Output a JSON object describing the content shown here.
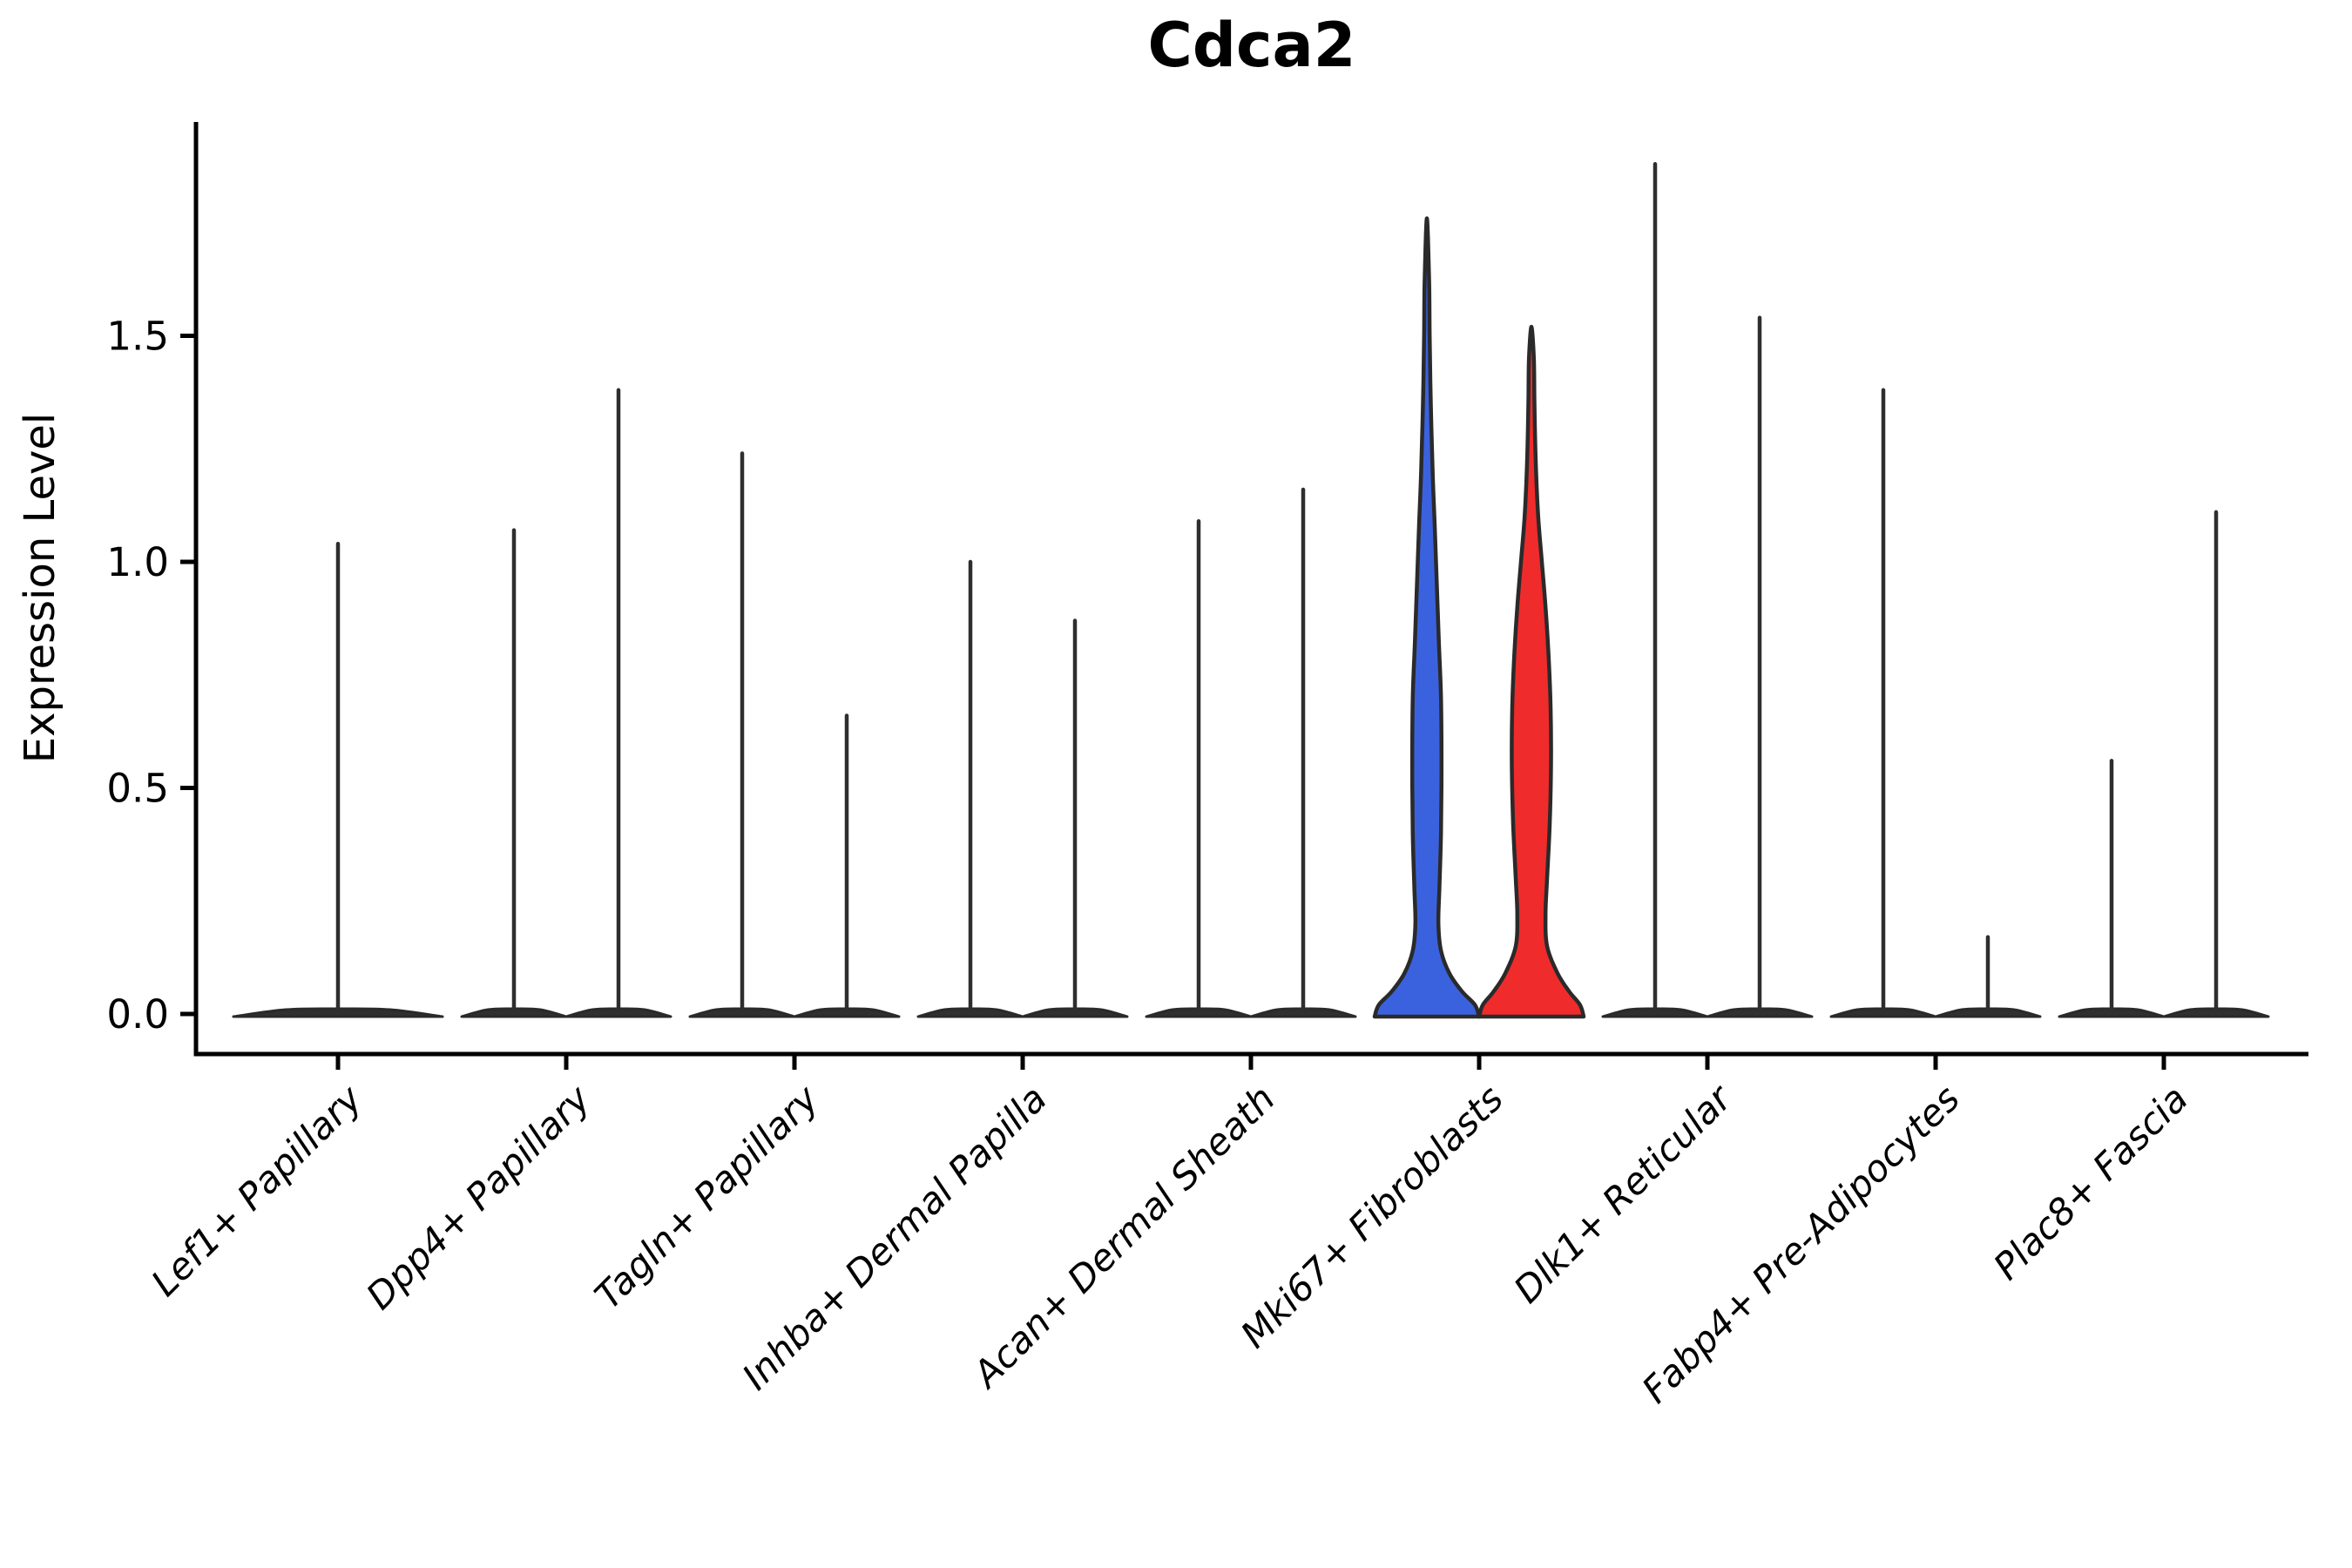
{
  "figure": {
    "background": "#ffffff"
  },
  "chart_data": {
    "type": "violin",
    "title": "Cdca2",
    "ylabel": "Expression Level",
    "xlabel": "",
    "grid": false,
    "legend_position": "none",
    "ylim": [
      -0.08,
      1.97
    ],
    "yticks": [
      0.0,
      0.5,
      1.0,
      1.5
    ],
    "ytick_labels": [
      "0.0",
      "0.5",
      "1.0",
      "1.5"
    ],
    "categories": [
      "Lef1+ Papillary",
      "Dpp4+ Papillary",
      "Tagln+ Papillary",
      "Inhba+ Dermal Papilla",
      "Acan+ Dermal Sheath",
      "Mki67+ Fibroblasts",
      "Dlk1+ Reticular",
      "Fabp4+ Pre-Adipocytes",
      "Plac8+ Fascia"
    ],
    "colors": {
      "split_left_fill": "#3B62DE",
      "split_right_fill": "#F02B2B",
      "edge": "#2A2A2A",
      "spike": "#2E2E2E",
      "axis": "#000000"
    },
    "violins": [
      {
        "category_index": 0,
        "category": "Lef1+ Papillary",
        "side": "center",
        "span": "full",
        "max_expression": 1.04,
        "filled": false,
        "fill": null
      },
      {
        "category_index": 1,
        "category": "Dpp4+ Papillary",
        "side": "left",
        "span": "half",
        "max_expression": 1.07,
        "filled": false,
        "fill": null
      },
      {
        "category_index": 1,
        "category": "Dpp4+ Papillary",
        "side": "right",
        "span": "half",
        "max_expression": 1.38,
        "filled": false,
        "fill": null
      },
      {
        "category_index": 2,
        "category": "Tagln+ Papillary",
        "side": "left",
        "span": "half",
        "max_expression": 1.24,
        "filled": false,
        "fill": null
      },
      {
        "category_index": 2,
        "category": "Tagln+ Papillary",
        "side": "right",
        "span": "half",
        "max_expression": 0.66,
        "filled": false,
        "fill": null
      },
      {
        "category_index": 3,
        "category": "Inhba+ Dermal Papilla",
        "side": "left",
        "span": "half",
        "max_expression": 1.0,
        "filled": false,
        "fill": null
      },
      {
        "category_index": 3,
        "category": "Inhba+ Dermal Papilla",
        "side": "right",
        "span": "half",
        "max_expression": 0.87,
        "filled": false,
        "fill": null
      },
      {
        "category_index": 4,
        "category": "Acan+ Dermal Sheath",
        "side": "left",
        "span": "half",
        "max_expression": 1.09,
        "filled": false,
        "fill": null
      },
      {
        "category_index": 4,
        "category": "Acan+ Dermal Sheath",
        "side": "right",
        "span": "half",
        "max_expression": 1.16,
        "filled": false,
        "fill": null
      },
      {
        "category_index": 5,
        "category": "Mki67+ Fibroblasts",
        "side": "left",
        "span": "half",
        "max_expression": 1.76,
        "filled": true,
        "fill": "#3B62DE",
        "density_profile": [
          [
            0,
            1
          ],
          [
            0.02,
            0.92
          ],
          [
            0.05,
            0.67
          ],
          [
            0.09,
            0.43
          ],
          [
            0.14,
            0.27
          ],
          [
            0.2,
            0.22
          ],
          [
            0.28,
            0.24
          ],
          [
            0.4,
            0.27
          ],
          [
            0.55,
            0.28
          ],
          [
            0.7,
            0.27
          ],
          [
            0.82,
            0.23
          ],
          [
            0.95,
            0.19
          ],
          [
            1.08,
            0.15
          ],
          [
            1.2,
            0.11
          ],
          [
            1.35,
            0.075
          ],
          [
            1.5,
            0.053
          ],
          [
            1.62,
            0.043
          ],
          [
            1.76,
            0
          ]
        ]
      },
      {
        "category_index": 5,
        "category": "Mki67+ Fibroblasts",
        "side": "right",
        "span": "half",
        "max_expression": 1.52,
        "filled": true,
        "fill": "#F02B2B",
        "density_profile": [
          [
            0,
            1
          ],
          [
            0.02,
            0.93
          ],
          [
            0.05,
            0.72
          ],
          [
            0.09,
            0.5
          ],
          [
            0.15,
            0.3
          ],
          [
            0.22,
            0.27
          ],
          [
            0.3,
            0.3
          ],
          [
            0.42,
            0.35
          ],
          [
            0.55,
            0.375
          ],
          [
            0.68,
            0.367
          ],
          [
            0.8,
            0.325
          ],
          [
            0.9,
            0.27
          ],
          [
            1.0,
            0.2
          ],
          [
            1.1,
            0.13
          ],
          [
            1.22,
            0.083
          ],
          [
            1.35,
            0.058
          ],
          [
            1.45,
            0.047
          ],
          [
            1.52,
            0
          ]
        ]
      },
      {
        "category_index": 6,
        "category": "Dlk1+ Reticular",
        "side": "left",
        "span": "half",
        "max_expression": 1.88,
        "filled": false,
        "fill": null
      },
      {
        "category_index": 6,
        "category": "Dlk1+ Reticular",
        "side": "right",
        "span": "half",
        "max_expression": 1.54,
        "filled": false,
        "fill": null
      },
      {
        "category_index": 7,
        "category": "Fabp4+ Pre-Adipocytes",
        "side": "left",
        "span": "half",
        "max_expression": 1.38,
        "filled": false,
        "fill": null
      },
      {
        "category_index": 7,
        "category": "Fabp4+ Pre-Adipocytes",
        "side": "right",
        "span": "half",
        "max_expression": 0.17,
        "filled": false,
        "fill": null
      },
      {
        "category_index": 8,
        "category": "Plac8+ Fascia",
        "side": "left",
        "span": "half",
        "max_expression": 0.56,
        "filled": false,
        "fill": null
      },
      {
        "category_index": 8,
        "category": "Plac8+ Fascia",
        "side": "right",
        "span": "half",
        "max_expression": 1.11,
        "filled": false,
        "fill": null
      }
    ]
  }
}
